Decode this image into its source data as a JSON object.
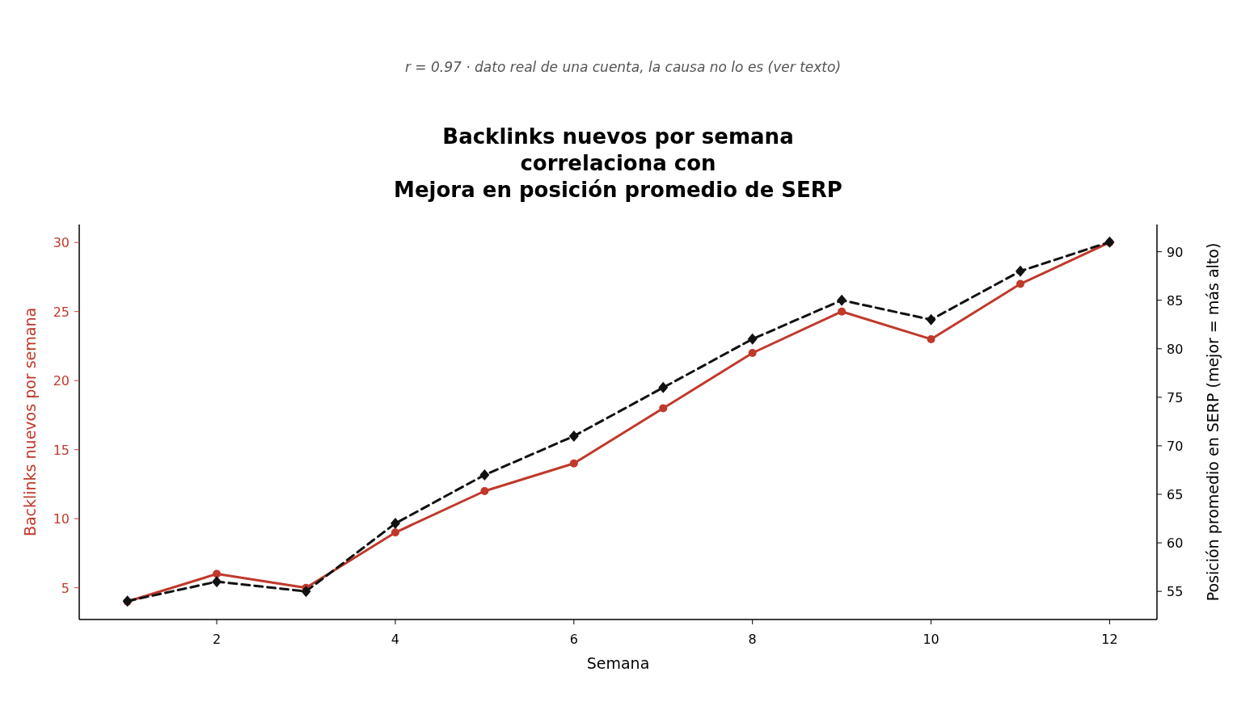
{
  "chart_data": {
    "type": "line",
    "subtitle": "r = 0.97  ·  dato real de una cuenta, la causa no lo es (ver texto)",
    "title": "Backlinks nuevos por semana\ncorrelaciona con\nMejora en posición promedio de SERP",
    "xlabel": "Semana",
    "ylabel": "Backlinks nuevos por semana",
    "y2label": "Posición promedio en SERP (mejor = más alto)",
    "x": [
      1,
      2,
      3,
      4,
      5,
      6,
      7,
      8,
      9,
      10,
      11,
      12
    ],
    "xlim": [
      0.46,
      12.53
    ],
    "xticks": [
      2,
      4,
      6,
      8,
      10,
      12
    ],
    "ylim": [
      2.7,
      31.3
    ],
    "yticks": [
      5,
      10,
      15,
      20,
      25,
      30
    ],
    "y2lim": [
      52.1,
      92.8
    ],
    "y2ticks": [
      55,
      60,
      65,
      70,
      75,
      80,
      85,
      90
    ],
    "series": [
      {
        "color": "#c0392b",
        "marker": "circle",
        "line_style": "solid",
        "values": [
          4,
          6,
          5,
          9,
          12,
          14,
          18,
          22,
          25,
          23,
          27,
          30
        ]
      },
      {
        "color": "#111111",
        "marker": "diamond",
        "line_style": "dashed",
        "axis": "y2",
        "values": [
          54,
          56,
          55,
          62,
          67,
          71,
          76,
          81,
          85,
          83,
          88,
          91
        ]
      }
    ]
  }
}
